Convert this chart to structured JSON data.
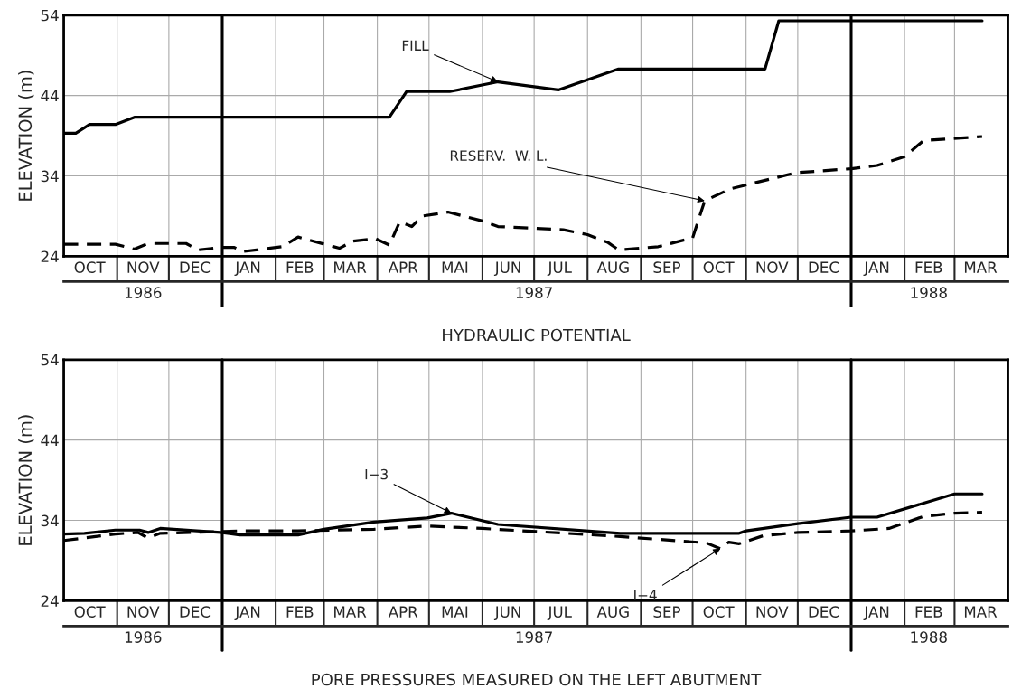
{
  "chart_data": [
    {
      "type": "line",
      "xlabel": "HYDRAULIC POTENTIAL",
      "ylabel": "ELEVATION (m)",
      "xlim": [
        "1986-10-01",
        "1988-04-01"
      ],
      "ylim": [
        24,
        54
      ],
      "yticks": [
        24,
        34,
        44,
        54
      ],
      "xticks": [
        {
          "value": "1986-11-01",
          "label": null
        },
        {
          "value": "1986-12-01",
          "label": null
        },
        {
          "value": "1987-02-01",
          "label": null
        },
        {
          "value": "1987-03-01",
          "label": null
        },
        {
          "value": "1987-04-01",
          "label": null
        },
        {
          "value": "1987-05-01",
          "label": null
        },
        {
          "value": "1987-06-01",
          "label": null
        },
        {
          "value": "1987-07-01",
          "label": null
        },
        {
          "value": "1987-08-01",
          "label": null
        },
        {
          "value": "1987-09-01",
          "label": null
        },
        {
          "value": "1987-10-01",
          "label": null
        },
        {
          "value": "1987-11-01",
          "label": null
        },
        {
          "value": "1987-12-01",
          "label": null
        },
        {
          "value": "1988-02-01",
          "label": null
        },
        {
          "value": "1988-03-01",
          "label": null
        },
        {
          "value": "1986-10-16",
          "label": "OCT"
        },
        {
          "value": "1986-11-16",
          "label": "NOV"
        },
        {
          "value": "1986-12-16",
          "label": "DEC"
        },
        {
          "value": "1987-01-16",
          "label": "JAN"
        },
        {
          "value": "1987-02-15",
          "label": "FEB"
        },
        {
          "value": "1987-03-16",
          "label": "MAR"
        },
        {
          "value": "1987-04-16",
          "label": "APR"
        },
        {
          "value": "1987-05-16",
          "label": "MAI"
        },
        {
          "value": "1987-06-16",
          "label": "JUN"
        },
        {
          "value": "1987-07-16",
          "label": "JUL"
        },
        {
          "value": "1987-08-16",
          "label": "AUG"
        },
        {
          "value": "1987-09-16",
          "label": "SEP"
        },
        {
          "value": "1987-10-16",
          "label": "OCT"
        },
        {
          "value": "1987-11-16",
          "label": "NOV"
        },
        {
          "value": "1987-12-16",
          "label": "DEC"
        },
        {
          "value": "1988-01-16",
          "label": "JAN"
        },
        {
          "value": "1988-02-15",
          "label": "FEB"
        },
        {
          "value": "1988-03-16",
          "label": "MAR"
        }
      ],
      "x2lim": [
        "1986-10-01",
        "1988-04-01"
      ],
      "x2ticks": [
        {
          "value": "1986-11-16",
          "label": "1986"
        },
        {
          "value": "1987-07-01",
          "label": "1987"
        },
        {
          "value": "1988-02-15",
          "label": "1988"
        }
      ],
      "grid": true,
      "ref_lines": [
        {
          "axis": "x",
          "value": "1987-01-01",
          "color": "#000000"
        },
        {
          "axis": "x",
          "value": "1988-01-01",
          "color": "#000000"
        }
      ],
      "annotations": [
        {
          "text": "FILL",
          "x": "1987-06-10",
          "y": 45.7
        },
        {
          "text": "RESERV.  W. L.",
          "x": "1987-10-08",
          "y": 30.9
        }
      ],
      "series": [
        {
          "color": "#000000",
          "line_style": "solid",
          "x": [
            "1986-10-01",
            "1986-10-08",
            "1986-10-16",
            "1986-10-31",
            "1986-11-11",
            "1987-04-08",
            "1987-04-18",
            "1987-05-13",
            "1987-06-10",
            "1987-07-15",
            "1987-08-19",
            "1987-11-12",
            "1987-11-20",
            "1988-03-17"
          ],
          "values": [
            39.3,
            39.3,
            40.4,
            40.4,
            41.3,
            41.3,
            44.5,
            44.5,
            45.7,
            44.7,
            47.3,
            47.3,
            53.3,
            53.3
          ]
        },
        {
          "color": "#000000",
          "line_style": "dashed",
          "x": [
            "1986-10-01",
            "1986-10-31",
            "1986-11-11",
            "1986-11-19",
            "1986-12-11",
            "1986-12-18",
            "1986-12-31",
            "1987-01-08",
            "1987-01-13",
            "1987-02-05",
            "1987-02-14",
            "1987-03-10",
            "1987-03-18",
            "1987-03-31",
            "1987-04-08",
            "1987-04-14",
            "1987-04-21",
            "1987-04-27",
            "1987-05-12",
            "1987-06-01",
            "1987-06-10",
            "1987-07-18",
            "1987-08-01",
            "1987-08-13",
            "1987-08-19",
            "1987-09-11",
            "1987-10-01",
            "1987-10-08",
            "1987-10-23",
            "1987-11-30",
            "1988-01-01",
            "1988-01-16",
            "1988-02-01",
            "1988-02-12",
            "1988-03-17"
          ],
          "values": [
            25.5,
            25.5,
            24.9,
            25.6,
            25.6,
            24.8,
            25.1,
            25.1,
            24.6,
            25.2,
            26.4,
            25.0,
            25.9,
            26.2,
            25.4,
            28.3,
            27.7,
            29.0,
            29.5,
            28.4,
            27.7,
            27.3,
            26.7,
            25.7,
            24.8,
            25.2,
            26.3,
            30.9,
            32.4,
            34.4,
            34.9,
            35.3,
            36.4,
            38.4,
            38.9
          ]
        }
      ]
    },
    {
      "type": "line",
      "xlabel": "PORE PRESSURES MEASURED ON THE LEFT ABUTMENT",
      "ylabel": "ELEVATION (m)",
      "xlim": [
        "1986-10-01",
        "1988-04-01"
      ],
      "ylim": [
        24,
        54
      ],
      "yticks": [
        24,
        34,
        44,
        54
      ],
      "xticks": [
        {
          "value": "1986-11-01",
          "label": null
        },
        {
          "value": "1986-12-01",
          "label": null
        },
        {
          "value": "1987-02-01",
          "label": null
        },
        {
          "value": "1987-03-01",
          "label": null
        },
        {
          "value": "1987-04-01",
          "label": null
        },
        {
          "value": "1987-05-01",
          "label": null
        },
        {
          "value": "1987-06-01",
          "label": null
        },
        {
          "value": "1987-07-01",
          "label": null
        },
        {
          "value": "1987-08-01",
          "label": null
        },
        {
          "value": "1987-09-01",
          "label": null
        },
        {
          "value": "1987-10-01",
          "label": null
        },
        {
          "value": "1987-11-01",
          "label": null
        },
        {
          "value": "1987-12-01",
          "label": null
        },
        {
          "value": "1988-02-01",
          "label": null
        },
        {
          "value": "1988-03-01",
          "label": null
        },
        {
          "value": "1986-10-16",
          "label": "OCT"
        },
        {
          "value": "1986-11-16",
          "label": "NOV"
        },
        {
          "value": "1986-12-16",
          "label": "DEC"
        },
        {
          "value": "1987-01-16",
          "label": "JAN"
        },
        {
          "value": "1987-02-15",
          "label": "FEB"
        },
        {
          "value": "1987-03-16",
          "label": "MAR"
        },
        {
          "value": "1987-04-16",
          "label": "APR"
        },
        {
          "value": "1987-05-16",
          "label": "MAI"
        },
        {
          "value": "1987-06-16",
          "label": "JUN"
        },
        {
          "value": "1987-07-16",
          "label": "JUL"
        },
        {
          "value": "1987-08-16",
          "label": "AUG"
        },
        {
          "value": "1987-09-16",
          "label": "SEP"
        },
        {
          "value": "1987-10-16",
          "label": "OCT"
        },
        {
          "value": "1987-11-16",
          "label": "NOV"
        },
        {
          "value": "1987-12-16",
          "label": "DEC"
        },
        {
          "value": "1988-01-16",
          "label": "JAN"
        },
        {
          "value": "1988-02-15",
          "label": "FEB"
        },
        {
          "value": "1988-03-16",
          "label": "MAR"
        }
      ],
      "x2lim": [
        "1986-10-01",
        "1988-04-01"
      ],
      "x2ticks": [
        {
          "value": "1986-11-16",
          "label": "1986"
        },
        {
          "value": "1987-07-01",
          "label": "1987"
        },
        {
          "value": "1988-02-15",
          "label": "1988"
        }
      ],
      "grid": true,
      "ref_lines": [
        {
          "axis": "x",
          "value": "1987-01-01",
          "color": "#000000"
        },
        {
          "axis": "x",
          "value": "1988-01-01",
          "color": "#000000"
        }
      ],
      "annotations": [
        {
          "text": "I−3",
          "x": "1987-05-14",
          "y": 34.9
        },
        {
          "text": "I−4",
          "x": "1987-10-17",
          "y": 30.5
        }
      ],
      "series": [
        {
          "color": "#000000",
          "line_style": "solid",
          "x": [
            "1986-10-01",
            "1986-10-13",
            "1986-10-31",
            "1986-11-14",
            "1986-11-19",
            "1986-11-26",
            "1986-12-31",
            "1987-01-11",
            "1987-02-14",
            "1987-03-01",
            "1987-03-30",
            "1987-04-30",
            "1987-05-14",
            "1987-06-10",
            "1987-08-20",
            "1987-10-28",
            "1987-11-01",
            "1987-12-01",
            "1988-01-01",
            "1988-01-16",
            "1988-03-01",
            "1988-03-17"
          ],
          "values": [
            32.3,
            32.4,
            32.8,
            32.8,
            32.5,
            33.0,
            32.5,
            32.2,
            32.2,
            32.9,
            33.8,
            34.3,
            34.9,
            33.5,
            32.4,
            32.4,
            32.7,
            33.6,
            34.4,
            34.4,
            37.3,
            37.3
          ]
        },
        {
          "color": "#000000",
          "line_style": "dashed",
          "x": [
            "1986-10-01",
            "1986-10-31",
            "1986-11-13",
            "1986-11-19",
            "1986-11-26",
            "1986-12-31",
            "1987-01-11",
            "1987-02-14",
            "1987-03-30",
            "1987-04-30",
            "1987-06-01",
            "1987-08-20",
            "1987-10-09",
            "1987-10-17",
            "1987-10-22",
            "1987-10-28",
            "1987-11-11",
            "1987-12-01",
            "1988-01-01",
            "1988-01-23",
            "1988-02-12",
            "1988-03-01",
            "1988-03-17"
          ],
          "values": [
            31.5,
            32.3,
            32.5,
            31.8,
            32.4,
            32.6,
            32.7,
            32.7,
            32.9,
            33.3,
            33.0,
            32.0,
            31.2,
            30.5,
            31.3,
            31.1,
            32.1,
            32.5,
            32.7,
            33.0,
            34.5,
            34.9,
            35.0
          ]
        }
      ]
    }
  ]
}
